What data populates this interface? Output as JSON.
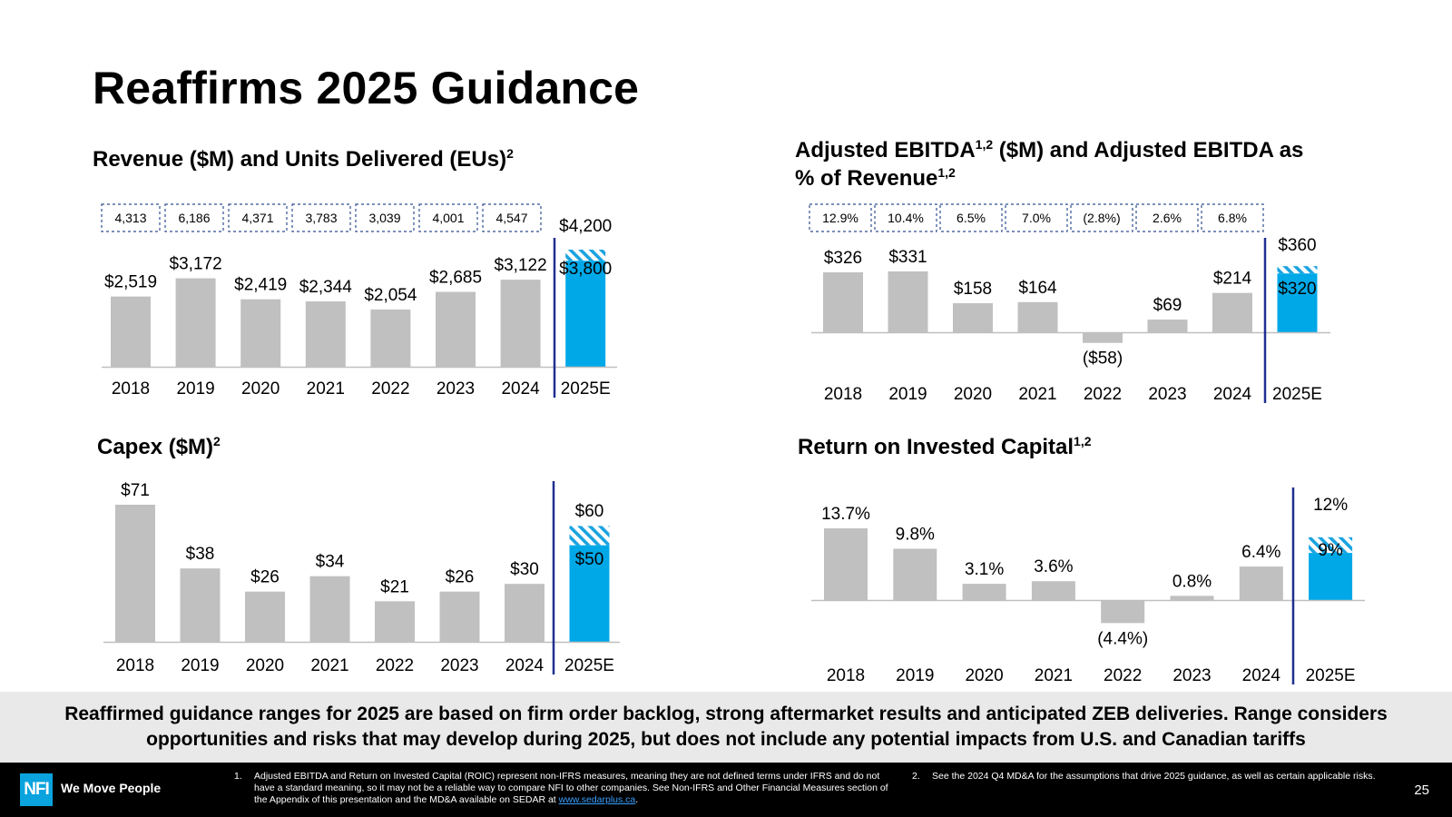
{
  "page": {
    "title": "Reaffirms 2025 Guidance",
    "page_number": "25",
    "banner": "Reaffirmed guidance ranges for 2025 are based on firm order backlog, strong aftermarket results and anticipated ZEB deliveries. Range considers opportunities and risks that may develop during 2025, but does not include any potential impacts from U.S. and Canadian tariffs",
    "logo_text": "NFI",
    "tagline": "We Move People",
    "footnote1_num": "1.",
    "footnote1": "Adjusted EBITDA and Return on Invested Capital (ROIC) represent non-IFRS measures, meaning they are not defined terms under IFRS and do not have a standard meaning, so it may not be a reliable way to compare NFI to other companies. See Non-IFRS and Other Financial Measures section of the Appendix of this presentation and the MD&A available on SEDAR at",
    "footnote1_link": "www.sedarplus.ca",
    "footnote1_end": ".",
    "footnote2_num": "2.",
    "footnote2": "See the 2024 Q4 MD&A for the assumptions that drive 2025 guidance, as well as certain applicable risks."
  },
  "colors": {
    "bar_gray": "#c0c0c0",
    "bar_blue": "#00a8e8",
    "divider": "#1f2f8f",
    "box_border": "#2f4f8f"
  },
  "chart_data": [
    {
      "id": "revenue",
      "type": "bar",
      "title_main": "Revenue ($M) and Units Delivered (EUs)",
      "title_sup": "2",
      "categories": [
        "2018",
        "2019",
        "2020",
        "2021",
        "2022",
        "2023",
        "2024",
        "2025E"
      ],
      "values": [
        2519,
        3172,
        2419,
        2344,
        2054,
        2685,
        3122,
        null
      ],
      "labels": [
        "$2,519",
        "$3,172",
        "$2,419",
        "$2,344",
        "$2,054",
        "$2,685",
        "$3,122"
      ],
      "guidance": {
        "low": 3800,
        "high": 4200,
        "low_label": "$3,800",
        "high_label": "$4,200"
      },
      "boxed_values": [
        "4,313",
        "6,186",
        "4,371",
        "3,783",
        "3,039",
        "4,001",
        "4,547"
      ],
      "ylim": [
        0,
        4200
      ]
    },
    {
      "id": "ebitda",
      "type": "bar",
      "title_main": "Adjusted EBITDA",
      "title_sup": "1,2",
      "title_mid": " ($M) and Adjusted EBITDA as",
      "title_line2": "% of Revenue",
      "title_line2_sup": "1,2",
      "categories": [
        "2018",
        "2019",
        "2020",
        "2021",
        "2022",
        "2023",
        "2024",
        "2025E"
      ],
      "values": [
        326,
        331,
        158,
        164,
        -58,
        69,
        214,
        null
      ],
      "labels": [
        "$326",
        "$331",
        "$158",
        "$164",
        "($58)",
        "$69",
        "$214"
      ],
      "guidance": {
        "low": 320,
        "high": 360,
        "low_label": "$320",
        "high_label": "$360"
      },
      "boxed_values": [
        "12.9%",
        "10.4%",
        "6.5%",
        "7.0%",
        "(2.8%)",
        "2.6%",
        "6.8%"
      ],
      "ylim": [
        -58,
        360
      ]
    },
    {
      "id": "capex",
      "type": "bar",
      "title_main": "Capex ($M)",
      "title_sup": "2",
      "categories": [
        "2018",
        "2019",
        "2020",
        "2021",
        "2022",
        "2023",
        "2024",
        "2025E"
      ],
      "values": [
        71,
        38,
        26,
        34,
        21,
        26,
        30,
        null
      ],
      "labels": [
        "$71",
        "$38",
        "$26",
        "$34",
        "$21",
        "$26",
        "$30"
      ],
      "guidance": {
        "low": 50,
        "high": 60,
        "low_label": "$50",
        "high_label": "$60"
      },
      "ylim": [
        0,
        71
      ]
    },
    {
      "id": "roic",
      "type": "bar",
      "title_main": "Return on Invested Capital",
      "title_sup": "1,2",
      "categories": [
        "2018",
        "2019",
        "2020",
        "2021",
        "2022",
        "2023",
        "2024",
        "2025E"
      ],
      "values": [
        13.7,
        9.8,
        3.1,
        3.6,
        -4.4,
        0.8,
        6.4,
        null
      ],
      "labels": [
        "13.7%",
        "9.8%",
        "3.1%",
        "3.6%",
        "(4.4%)",
        "0.8%",
        "6.4%"
      ],
      "guidance": {
        "low": 9,
        "high": 12,
        "low_label": "9%",
        "high_label": "12%"
      },
      "ylim": [
        -4.4,
        13.7
      ]
    }
  ]
}
